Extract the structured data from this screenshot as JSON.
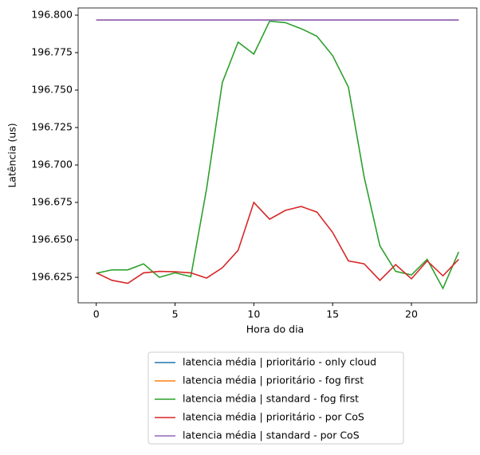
{
  "chart_data": {
    "type": "line",
    "xlabel": "Hora do dia",
    "ylabel": "Latência (us)",
    "x": [
      0,
      1,
      2,
      3,
      4,
      5,
      6,
      7,
      8,
      9,
      10,
      11,
      12,
      13,
      14,
      15,
      16,
      17,
      18,
      19,
      20,
      21,
      22,
      23
    ],
    "series": [
      {
        "name": "latencia média | prioritário - only cloud",
        "color": "#1f77b4",
        "values": [
          196.7967,
          196.7967,
          196.7967,
          196.7967,
          196.7967,
          196.7967,
          196.7967,
          196.7967,
          196.7967,
          196.7967,
          196.7967,
          196.7967,
          196.7967,
          196.7967,
          196.7967,
          196.7967,
          196.7967,
          196.7967,
          196.7967,
          196.7967,
          196.7967,
          196.7967,
          196.7967,
          196.7967
        ]
      },
      {
        "name": "latencia média | prioritário - fog first",
        "color": "#ff7f0e",
        "values": [
          196.7967,
          196.7967,
          196.7967,
          196.7967,
          196.7967,
          196.7967,
          196.7967,
          196.7967,
          196.7967,
          196.7967,
          196.7967,
          196.7967,
          196.7967,
          196.7967,
          196.7967,
          196.7967,
          196.7967,
          196.7967,
          196.7967,
          196.7967,
          196.7967,
          196.7967,
          196.7967,
          196.7967
        ]
      },
      {
        "name": "latencia média | standard - fog first",
        "color": "#2ca02c",
        "values": [
          196.6277,
          196.63,
          196.63,
          196.634,
          196.625,
          196.628,
          196.6255,
          196.684,
          196.755,
          196.782,
          196.774,
          196.796,
          196.795,
          196.791,
          196.786,
          196.773,
          196.752,
          196.692,
          196.646,
          196.629,
          196.6266,
          196.637,
          196.6176,
          196.642
        ]
      },
      {
        "name": "latencia média | prioritário - por CoS",
        "color": "#d62728",
        "values": [
          196.628,
          196.623,
          196.621,
          196.628,
          196.629,
          196.6287,
          196.628,
          196.6245,
          196.6314,
          196.643,
          196.675,
          196.6638,
          196.6697,
          196.6723,
          196.6686,
          196.655,
          196.636,
          196.634,
          196.623,
          196.6335,
          196.624,
          196.636,
          196.626,
          196.637
        ]
      },
      {
        "name": "latencia média | standard - por CoS",
        "color": "#9467bd",
        "values": [
          196.7967,
          196.7967,
          196.7967,
          196.7967,
          196.7967,
          196.7967,
          196.7967,
          196.7967,
          196.7967,
          196.7967,
          196.7967,
          196.7967,
          196.7967,
          196.7967,
          196.7967,
          196.7967,
          196.7967,
          196.7967,
          196.7967,
          196.7967,
          196.7967,
          196.7967,
          196.7967,
          196.7967
        ]
      }
    ],
    "xlim": [
      -1.15,
      24.15
    ],
    "xticks": [
      0,
      5,
      10,
      15,
      20
    ],
    "ylim": [
      196.608,
      196.8048
    ],
    "yticks": [
      {
        "value": 196.625,
        "label": "196.625"
      },
      {
        "value": 196.65,
        "label": "196.650"
      },
      {
        "value": 196.675,
        "label": "196.675"
      },
      {
        "value": 196.7,
        "label": "196.700"
      },
      {
        "value": 196.725,
        "label": "196.725"
      },
      {
        "value": 196.75,
        "label": "196.750"
      },
      {
        "value": 196.775,
        "label": "196.775"
      },
      {
        "value": 196.8,
        "label": "196.800"
      }
    ],
    "legend": "below"
  }
}
